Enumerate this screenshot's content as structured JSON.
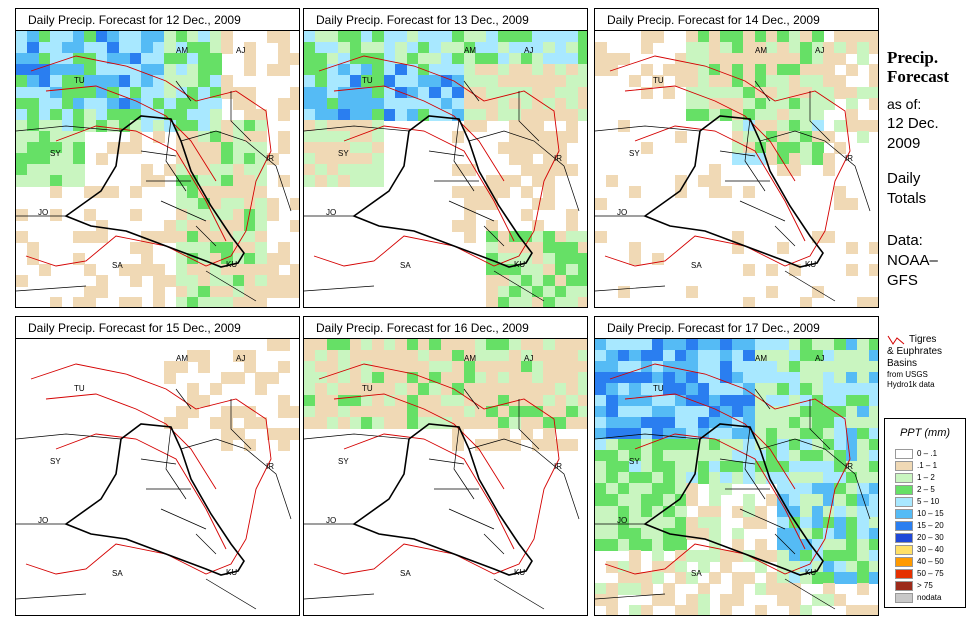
{
  "panels": [
    {
      "title": "Daily Precip. Forecast for  12 Dec., 2009",
      "intensity": 0.75,
      "regime": "wet"
    },
    {
      "title": "Daily Precip. Forecast for  13 Dec., 2009",
      "intensity": 0.9,
      "regime": "north-heavy"
    },
    {
      "title": "Daily Precip. Forecast for  14 Dec., 2009",
      "intensity": 0.5,
      "regime": "north-east"
    },
    {
      "title": "Daily Precip. Forecast for  15 Dec., 2009",
      "intensity": 0.15,
      "regime": "dry"
    },
    {
      "title": "Daily Precip. Forecast for  16 Dec., 2009",
      "intensity": 0.25,
      "regime": "light-north"
    },
    {
      "title": "Daily Precip. Forecast for  17 Dec., 2009",
      "intensity": 0.95,
      "regime": "heavy"
    }
  ],
  "country_labels": [
    "AM",
    "AJ",
    "TU",
    "SY",
    "IR",
    "JO",
    "SA",
    "KU"
  ],
  "sidebar": {
    "title_line1": "Precip.",
    "title_line2": "Forecast",
    "asof_label": "as of:",
    "asof_date1": "12 Dec.",
    "asof_date2": "2009",
    "totals1": "Daily",
    "totals2": "Totals",
    "data1": "Data:",
    "data2": "NOAA–",
    "data3": "GFS"
  },
  "basin_legend": {
    "line1": "Tigres",
    "line2": "& Euphrates",
    "line3": "Basins",
    "line4": "from USGS",
    "line5": "Hydro1k data"
  },
  "ppt_legend": {
    "title": "PPT (mm)",
    "entries": [
      {
        "label": "0 – .1",
        "color": "#ffffff"
      },
      {
        "label": ".1 – 1",
        "color": "#f0d9b5"
      },
      {
        "label": "1 – 2",
        "color": "#c9f5c0"
      },
      {
        "label": "2 – 5",
        "color": "#66e066"
      },
      {
        "label": "5 – 10",
        "color": "#a8e8ff"
      },
      {
        "label": "10 – 15",
        "color": "#55bbf5"
      },
      {
        "label": "15 – 20",
        "color": "#2a7ef0"
      },
      {
        "label": "20 – 30",
        "color": "#1f48d8"
      },
      {
        "label": "30 – 40",
        "color": "#ffe066"
      },
      {
        "label": "40 – 50",
        "color": "#ff9a00"
      },
      {
        "label": "50 – 75",
        "color": "#e53000"
      },
      {
        "label": "> 75",
        "color": "#9c2a1a"
      },
      {
        "label": "nodata",
        "color": "#c8c8c8"
      }
    ]
  },
  "colors": {
    "border": "#000000",
    "basin": "#d40000"
  }
}
